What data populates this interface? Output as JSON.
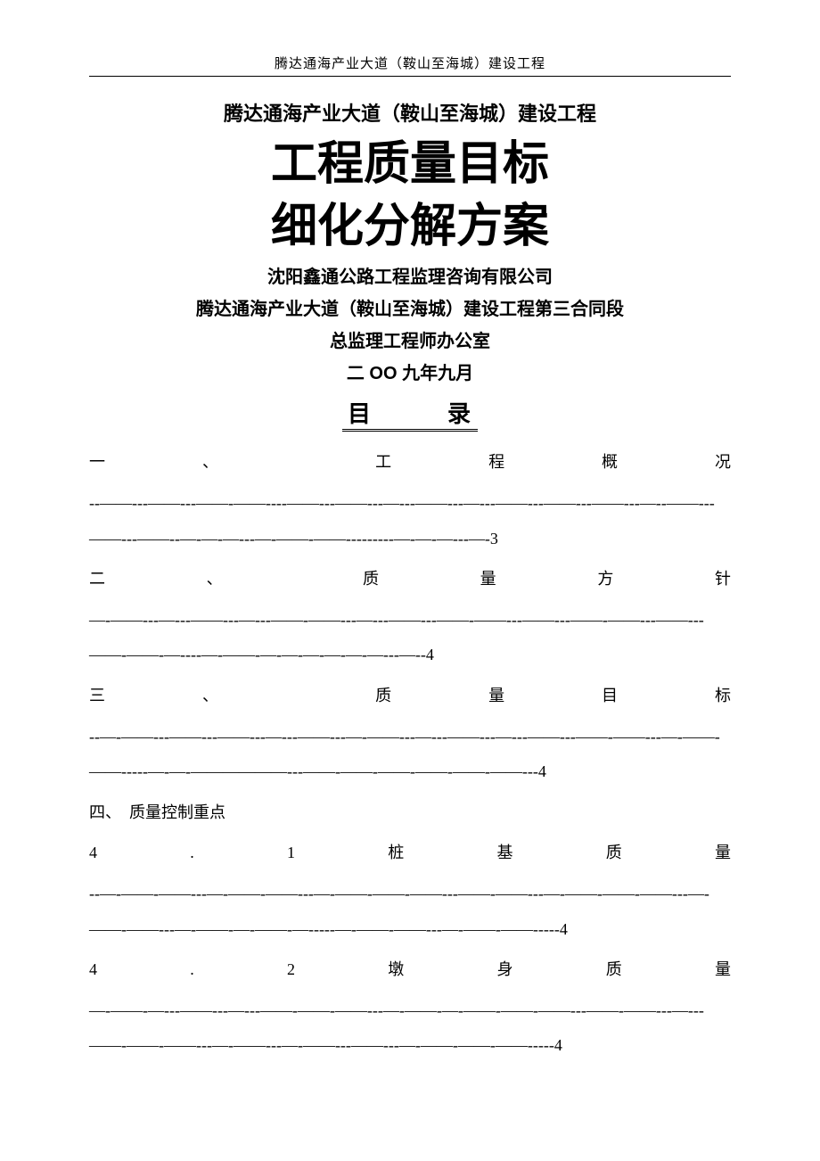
{
  "header": "腾达通海产业大道（鞍山至海城）建设工程",
  "subtitle": "腾达通海产业大道（鞍山至海城）建设工程",
  "big_title_1": "工程质量目标",
  "big_title_2": "细化分解方案",
  "org_1": "沈阳鑫通公路工程监理咨询有限公司",
  "org_2": "腾达通海产业大道（鞍山至海城）建设工程第三合同段",
  "org_3": "总监理工程师办公室",
  "date_line": "二 OO 九年九月",
  "toc_title": "目　　　录",
  "toc": {
    "e1_head": "一　　　　、　　　　　　　工　　　　程　　　　概　　　　况",
    "e1_dash": "--——---——---——-——----——---——---—---——---—---——---——---——---—--——---——---——--—-—-—---—-——-——---------—-—-—---—-3",
    "e2_head": "二　　　　、　　　　　　质　　　　量　　　　方　　　　针",
    "e2_dash": "—-——---—---——---—---——-——---—---——---——-——---——---——-——---——---——-——-—----—-——-—-—-—-—-—-—---—--4",
    "e3_head": "三　　　　、　　　　　　　质　　　　量　　　　目　　　　标",
    "e3_dash": "--—-——---——---——---—---——---—-——---—---——---—---——---——-——---—-——-——-----—-—-——————---——-——-——-——-——-——---4",
    "e4_head": "四、　质量控制重点",
    "e41_head": "4　　　　.　　　　1　　　　桩　　　　基　　　　质　　　　量",
    "e41_dash": "--—-——-——---—-——-——---—-——-——-——---——-——---—-——-——-——---—-——-——---—-——-—-——-—-----—-——-——---—-——-——-----4",
    "e42_head": "4　　　　.　　　　2　　　　墩　　　　身　　　　质　　　　量",
    "e42_dash": "—-——-—---——---—---——-——-——---—-——-—-——-——-——---——-——---—---——-——-——---—-——---—-——---——---—-——-——-——-----4"
  }
}
